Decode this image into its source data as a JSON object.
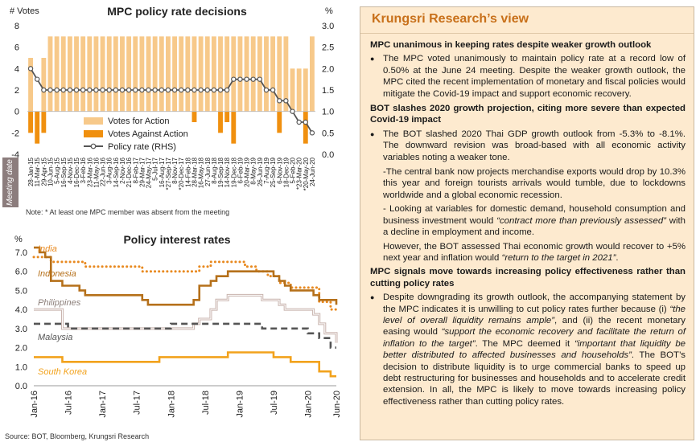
{
  "chart_data": [
    {
      "type": "bar",
      "title": "MPC policy rate decisions",
      "ylabel_left": "# Votes",
      "ylabel_right": "%",
      "xlabel": "Meeting date",
      "y_left_ticks": [
        "8",
        "6",
        "4",
        "2",
        "0",
        "-2",
        "-4"
      ],
      "y_right_ticks": [
        "3.0",
        "2.5",
        "2.0",
        "1.5",
        "1.0",
        "0.5",
        "0.0"
      ],
      "ylim_left": [
        -4,
        8
      ],
      "ylim_right": [
        0,
        3
      ],
      "legend": [
        "Votes for Action",
        "Votes Against Action",
        "Policy rate (RHS)"
      ],
      "legend_position": "lower-left",
      "categories": [
        "28-Jan-15",
        "11-Mar-15",
        "29-Apr-15",
        "10-Jun-15",
        "5-Aug-15",
        "16-Sep-15",
        "4-Nov-15",
        "16-Dec-15",
        "3-Feb-16",
        "23-Mar-16",
        "11-May-16",
        "22-Jun-16",
        "3-Aug-16",
        "14-Sep-16",
        "2-Nov-16",
        "21-Dec-16",
        "8-Feb-17",
        "29-Mar-17",
        "24-May-17",
        "5-Jul-17",
        "16-Aug-17",
        "*27-Sep-17",
        "8-Nov-17",
        "*20-Dec-17",
        "14-Feb-18",
        "28-Mar-18",
        "16-May-18",
        "27-Jun-18",
        "8-Aug-18",
        "19-Sep-18",
        "14-Nov-18",
        "19-Dec-18",
        "6-Feb-19",
        "20-Mar-19",
        "8-May-19",
        "26-Jun-19",
        "7-Aug-19",
        "25-Sep-19",
        "6-Nov-19",
        "18-Dec-19",
        "5-Feb-20",
        "*23-Mar-20",
        "*20-May-20",
        "24-Jun-20"
      ],
      "series": [
        {
          "name": "Votes for Action",
          "values": [
            5,
            0,
            5,
            7,
            7,
            7,
            7,
            7,
            7,
            7,
            7,
            7,
            7,
            7,
            7,
            7,
            7,
            7,
            7,
            7,
            7,
            7,
            7,
            7,
            7,
            7,
            7,
            7,
            7,
            7,
            7,
            7,
            7,
            7,
            7,
            7,
            7,
            7,
            7,
            7,
            4,
            4,
            4,
            7
          ]
        },
        {
          "name": "Votes Against Action",
          "values": [
            -2,
            -3,
            -2,
            0,
            0,
            0,
            0,
            0,
            0,
            0,
            0,
            0,
            0,
            0,
            0,
            0,
            0,
            0,
            0,
            0,
            0,
            0,
            0,
            0,
            0,
            -1,
            0,
            0,
            0,
            -2,
            -1,
            -3,
            0,
            0,
            0,
            0,
            0,
            0,
            -2,
            0,
            0,
            0,
            -3,
            0
          ]
        },
        {
          "name": "Policy rate (RHS)",
          "values": [
            2.0,
            1.75,
            1.5,
            1.5,
            1.5,
            1.5,
            1.5,
            1.5,
            1.5,
            1.5,
            1.5,
            1.5,
            1.5,
            1.5,
            1.5,
            1.5,
            1.5,
            1.5,
            1.5,
            1.5,
            1.5,
            1.5,
            1.5,
            1.5,
            1.5,
            1.5,
            1.5,
            1.5,
            1.5,
            1.5,
            1.5,
            1.75,
            1.75,
            1.75,
            1.75,
            1.75,
            1.5,
            1.5,
            1.25,
            1.25,
            1.0,
            0.75,
            0.75,
            0.5
          ]
        }
      ],
      "note": "Note: * At least one MPC member was absent from the meeting"
    },
    {
      "type": "line",
      "title": "Policy interest rates",
      "ylabel": "%",
      "ylim": [
        0,
        7
      ],
      "y_ticks": [
        "7.0",
        "6.0",
        "5.0",
        "4.0",
        "3.0",
        "2.0",
        "1.0",
        "0.0"
      ],
      "x_ticks": [
        "Jan-16",
        "Jul-16",
        "Jan-17",
        "Jul-17",
        "Jan-18",
        "Jul-18",
        "Jan-19",
        "Jul-19",
        "Jan-20",
        "Jun-20"
      ],
      "x_range": [
        "2016-01",
        "2020-06"
      ],
      "series": [
        {
          "name": "India",
          "color": "#e8891f",
          "style": "dotted",
          "points": [
            [
              "2016-01",
              6.75
            ],
            [
              "2016-04",
              6.5
            ],
            [
              "2016-10",
              6.25
            ],
            [
              "2017-08",
              6.0
            ],
            [
              "2018-06",
              6.25
            ],
            [
              "2018-08",
              6.5
            ],
            [
              "2019-02",
              6.25
            ],
            [
              "2019-04",
              6.0
            ],
            [
              "2019-06",
              5.75
            ],
            [
              "2019-08",
              5.4
            ],
            [
              "2019-10",
              5.15
            ],
            [
              "2020-03",
              4.4
            ],
            [
              "2020-05",
              4.0
            ],
            [
              "2020-06",
              4.0
            ]
          ]
        },
        {
          "name": "Indonesia",
          "color": "#b5701a",
          "style": "solid",
          "points": [
            [
              "2016-01",
              7.25
            ],
            [
              "2016-02",
              7.0
            ],
            [
              "2016-03",
              6.75
            ],
            [
              "2016-04",
              5.5
            ],
            [
              "2016-06",
              5.25
            ],
            [
              "2016-08",
              5.25
            ],
            [
              "2016-09",
              5.0
            ],
            [
              "2016-10",
              4.75
            ],
            [
              "2017-08",
              4.5
            ],
            [
              "2017-09",
              4.25
            ],
            [
              "2018-05",
              4.5
            ],
            [
              "2018-06",
              5.25
            ],
            [
              "2018-07",
              5.25
            ],
            [
              "2018-08",
              5.5
            ],
            [
              "2018-09",
              5.75
            ],
            [
              "2018-11",
              6.0
            ],
            [
              "2019-07",
              5.75
            ],
            [
              "2019-08",
              5.5
            ],
            [
              "2019-09",
              5.25
            ],
            [
              "2019-10",
              5.0
            ],
            [
              "2020-02",
              4.75
            ],
            [
              "2020-03",
              4.5
            ],
            [
              "2020-06",
              4.25
            ]
          ]
        },
        {
          "name": "Philippines",
          "color": "#c8b3ad",
          "style": "double",
          "points": [
            [
              "2016-01",
              4.0
            ],
            [
              "2016-06",
              3.0
            ],
            [
              "2018-05",
              3.25
            ],
            [
              "2018-06",
              3.5
            ],
            [
              "2018-08",
              4.0
            ],
            [
              "2018-09",
              4.5
            ],
            [
              "2018-11",
              4.75
            ],
            [
              "2019-05",
              4.5
            ],
            [
              "2019-08",
              4.25
            ],
            [
              "2019-09",
              4.0
            ],
            [
              "2020-02",
              3.75
            ],
            [
              "2020-03",
              3.25
            ],
            [
              "2020-04",
              2.75
            ],
            [
              "2020-06",
              2.25
            ]
          ]
        },
        {
          "name": "Malaysia",
          "color": "#555555",
          "style": "dashed",
          "points": [
            [
              "2016-01",
              3.25
            ],
            [
              "2016-07",
              3.0
            ],
            [
              "2018-01",
              3.25
            ],
            [
              "2019-05",
              3.0
            ],
            [
              "2020-01",
              2.75
            ],
            [
              "2020-03",
              2.5
            ],
            [
              "2020-05",
              2.0
            ],
            [
              "2020-06",
              2.0
            ]
          ]
        },
        {
          "name": "South Korea",
          "color": "#f2a21c",
          "style": "solid",
          "points": [
            [
              "2016-01",
              1.5
            ],
            [
              "2016-06",
              1.25
            ],
            [
              "2017-11",
              1.5
            ],
            [
              "2018-11",
              1.75
            ],
            [
              "2019-07",
              1.5
            ],
            [
              "2019-10",
              1.25
            ],
            [
              "2020-03",
              0.75
            ],
            [
              "2020-05",
              0.5
            ],
            [
              "2020-06",
              0.5
            ]
          ]
        }
      ],
      "source": "Source: BOT, Bloomberg, Krungsri Research"
    }
  ],
  "panel": {
    "title": "Krungsri Research’s view",
    "h1": "MPC unanimous in keeping rates despite weaker growth outlook",
    "b1": "The MPC voted unanimously to maintain policy rate at a record low of 0.50% at the June 24 meeting. Despite the weaker growth outlook, the MPC cited the recent implementation of monetary and fiscal policies would mitigate the Covid-19 impact and support economic recovery.",
    "h2": "BOT slashes 2020 growth projection, citing more severe than expected Covid-19 impact",
    "b2": "The BOT slashed 2020 Thai GDP growth outlook from -5.3% to -8.1%. The downward revision was broad-based with all economic activity variables noting a weaker tone.",
    "s2a": "-The central bank now projects merchandise exports would drop by 10.3% this year and foreign tourists arrivals would tumble, due to lockdowns worldwide and a global economic recession.",
    "s2b_pre": "- Looking at variables for domestic demand, household consumption and business investment would ",
    "s2b_quote": "“contract more than previously assessed”",
    "s2b_post": " with a decline in employment and income.",
    "s2c_pre": "However, the BOT assessed Thai economic growth would recover to +5% next year and inflation would ",
    "s2c_quote": "“return to the target in 2021”",
    "s2c_post": ".",
    "h3": "MPC signals move towards increasing policy effectiveness rather than cutting policy rates",
    "b3_p1": "Despite downgrading its growth outlook, the accompanying statement by the MPC indicates it is unwilling to cut policy rates further because (i) ",
    "b3_q1": "“the level of overall liquidity remains ample”",
    "b3_p2": ", and (ii) the recent monetary easing would ",
    "b3_q2": "“support the economic recovery and facilitate the return of inflation to the target”",
    "b3_p3": ". The MPC deemed it ",
    "b3_q3": "“important that liquidity be better distributed to affected businesses and households”",
    "b3_p4": ". The BOT’s decision to distribute liquidity is to urge commercial banks to speed up debt restructuring for businesses and households and to accelerate credit extension. In all, the MPC is likely to move towards increasing policy effectiveness rather than cutting policy rates."
  },
  "colors": {
    "votes_for": "#f7c98a",
    "votes_against": "#f0900f",
    "policy_rate_line": "#555555",
    "panel_bg": "#fdeacf",
    "panel_title": "#c8701a"
  }
}
